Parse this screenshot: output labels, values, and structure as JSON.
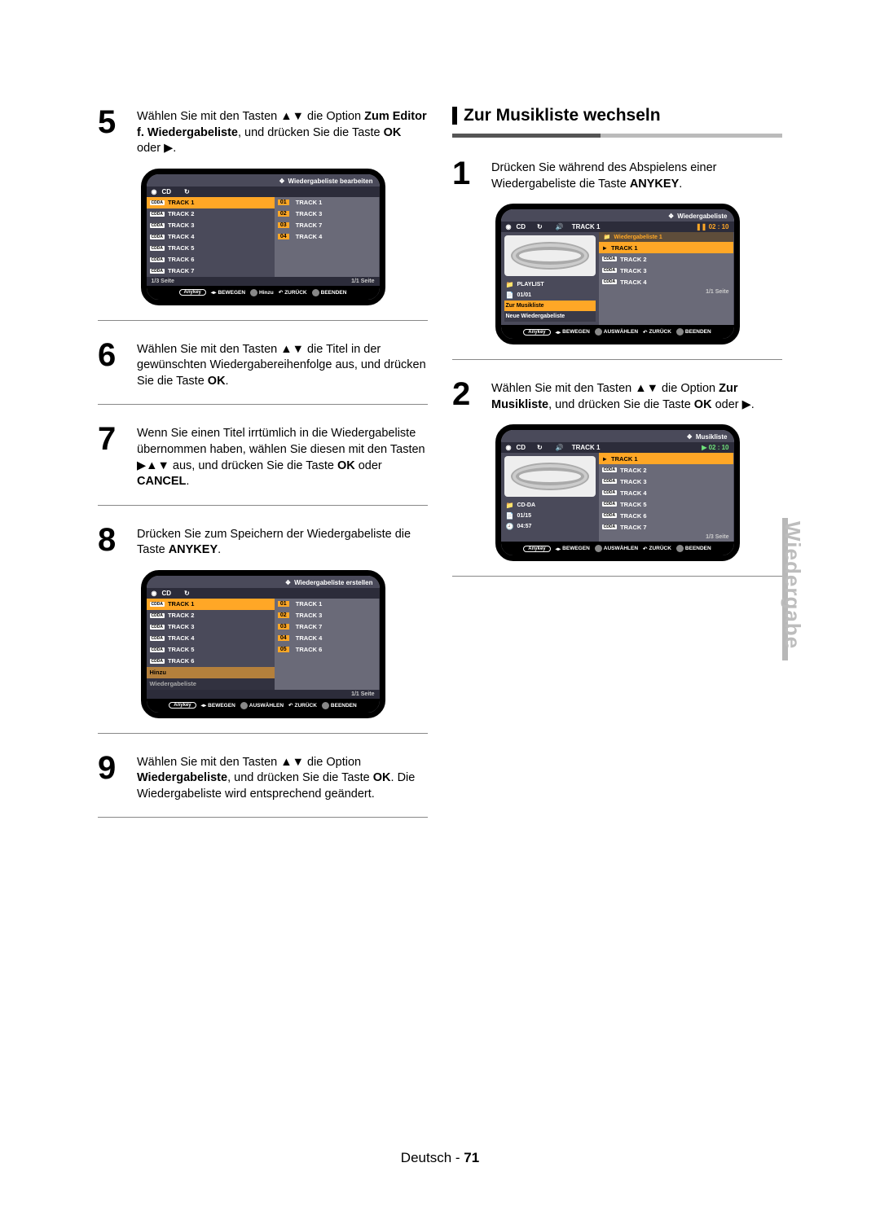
{
  "left": {
    "step5": {
      "num": "5",
      "parts": [
        "Wählen Sie mit den Tasten ▲▼ die Option ",
        "Zum Editor f. Wiedergabeliste",
        ", und drücken Sie die Taste ",
        "OK",
        " oder ",
        "▶",
        "."
      ]
    },
    "step6": {
      "num": "6",
      "text": "Wählen Sie mit den Tasten ▲▼ die Titel in der gewünschten Wiedergabereihenfolge aus, und drücken Sie die Taste ",
      "bold1": "OK",
      "tail": "."
    },
    "step7": {
      "num": "7",
      "text1": "Wenn Sie einen Titel irrtümlich in die Wiedergabeliste übernommen haben, wählen Sie diesen mit den Tasten ▶▲▼ aus, und drücken Sie die Taste ",
      "bold1": "OK",
      "mid": " oder ",
      "bold2": "CANCEL",
      "tail": "."
    },
    "step8": {
      "num": "8",
      "text": "Drücken Sie zum Speichern der Wiedergabeliste die Taste ",
      "bold1": "ANYKEY",
      "tail": "."
    },
    "step9": {
      "num": "9",
      "parts": [
        "Wählen Sie mit den Tasten ▲▼ die Option ",
        "Wiedergabeliste",
        ", und drücken Sie die Taste ",
        "OK",
        ". Die Wiedergabeliste wird entsprechend geändert."
      ]
    }
  },
  "right": {
    "heading": "Zur Musikliste wechseln",
    "step1": {
      "num": "1",
      "text": "Drücken Sie während des Abspielens einer Wiedergabeliste die Taste ",
      "bold1": "ANYKEY",
      "tail": "."
    },
    "step2": {
      "num": "2",
      "parts": [
        "Wählen Sie mit den Tasten ▲▼ die Option ",
        "Zur Musikliste",
        ", und drücken Sie die Taste ",
        "OK",
        " oder ",
        "▶",
        "."
      ]
    }
  },
  "deviceA": {
    "title": "Wiedergabeliste bearbeiten",
    "cd": "CD",
    "left": [
      {
        "tag": "CDDA",
        "name": "TRACK 1",
        "sel": true
      },
      {
        "tag": "CDDA",
        "name": "TRACK 2"
      },
      {
        "tag": "CDDA",
        "name": "TRACK 3"
      },
      {
        "tag": "CDDA",
        "name": "TRACK 4"
      },
      {
        "tag": "CDDA",
        "name": "TRACK 5"
      },
      {
        "tag": "CDDA",
        "name": "TRACK 6"
      },
      {
        "tag": "CDDA",
        "name": "TRACK 7"
      }
    ],
    "right": [
      {
        "n": "01",
        "name": "TRACK 1"
      },
      {
        "n": "02",
        "name": "TRACK 3"
      },
      {
        "n": "03",
        "name": "TRACK 7"
      },
      {
        "n": "04",
        "name": "TRACK 4"
      }
    ],
    "lpage": "1/3 Seite",
    "rpage": "1/1 Seite",
    "help": {
      "move": "BEWEGEN",
      "sel": "Hinzu",
      "back": "ZURÜCK",
      "exit": "BEENDEN",
      "anykey": "Anykey"
    }
  },
  "deviceB": {
    "title": "Wiedergabeliste erstellen",
    "left": [
      {
        "tag": "CDDA",
        "name": "TRACK 1",
        "sel": true
      },
      {
        "tag": "CDDA",
        "name": "TRACK 2"
      },
      {
        "tag": "CDDA",
        "name": "TRACK 3"
      },
      {
        "tag": "CDDA",
        "name": "TRACK 4"
      },
      {
        "tag": "CDDA",
        "name": "TRACK 5"
      },
      {
        "tag": "CDDA",
        "name": "TRACK 6"
      }
    ],
    "extra1": "Hinzu",
    "extra2": "Wiedergabeliste",
    "right": [
      {
        "n": "01",
        "name": "TRACK 1"
      },
      {
        "n": "02",
        "name": "TRACK 3"
      },
      {
        "n": "03",
        "name": "TRACK 7"
      },
      {
        "n": "04",
        "name": "TRACK 4"
      },
      {
        "n": "05",
        "name": "TRACK 6"
      }
    ],
    "rpage": "1/1 Seite",
    "help": {
      "move": "BEWEGEN",
      "sel": "AUSWÄHLEN",
      "back": "ZURÜCK",
      "exit": "BEENDEN",
      "anykey": "Anykey"
    }
  },
  "deviceC": {
    "title": "Wiedergabeliste",
    "hdr_left": "CD",
    "hdr_track": "TRACK  1",
    "hdr_time": "02 : 10",
    "sublabel": "Wiedergabeliste 1",
    "main": [
      {
        "tag": "► ",
        "name": "TRACK 1",
        "sel": true
      },
      {
        "tag": "CDDA",
        "name": "TRACK 2"
      },
      {
        "tag": "CDDA",
        "name": "TRACK 3"
      },
      {
        "tag": "CDDA",
        "name": "TRACK 4"
      }
    ],
    "side": [
      {
        "icon": "📁",
        "label": "PLAYLIST"
      },
      {
        "icon": "📄",
        "label": "01/01"
      }
    ],
    "sideSel": "Zur Musikliste",
    "sideDim": "Neue Wiedergabeliste",
    "rpage": "1/1 Seite",
    "help": {
      "move": "BEWEGEN",
      "sel": "AUSWÄHLEN",
      "back": "ZURÜCK",
      "exit": "BEENDEN",
      "anykey": "Anykey"
    }
  },
  "deviceD": {
    "title": "Musikliste",
    "hdr_left": "CD",
    "hdr_track": "TRACK  1",
    "hdr_time": "02 : 10",
    "main": [
      {
        "tag": "► ",
        "name": "TRACK 1",
        "sel": true
      },
      {
        "tag": "CDDA",
        "name": "TRACK 2"
      },
      {
        "tag": "CDDA",
        "name": "TRACK 3"
      },
      {
        "tag": "CDDA",
        "name": "TRACK 4"
      },
      {
        "tag": "CDDA",
        "name": "TRACK 5"
      },
      {
        "tag": "CDDA",
        "name": "TRACK 6"
      },
      {
        "tag": "CDDA",
        "name": "TRACK 7"
      }
    ],
    "side": [
      {
        "icon": "📁",
        "label": "CD-DA"
      },
      {
        "icon": "📄",
        "label": "01/15"
      },
      {
        "icon": "🕘",
        "label": "04:57"
      }
    ],
    "rpage": "1/3 Seite",
    "help": {
      "move": "BEWEGEN",
      "sel": "AUSWÄHLEN",
      "back": "ZURÜCK",
      "exit": "BEENDEN",
      "anykey": "Anykey"
    }
  },
  "sidetab": "Wiedergabe",
  "footer": {
    "lang": "Deutsch",
    "sep": " - ",
    "page": "71"
  }
}
